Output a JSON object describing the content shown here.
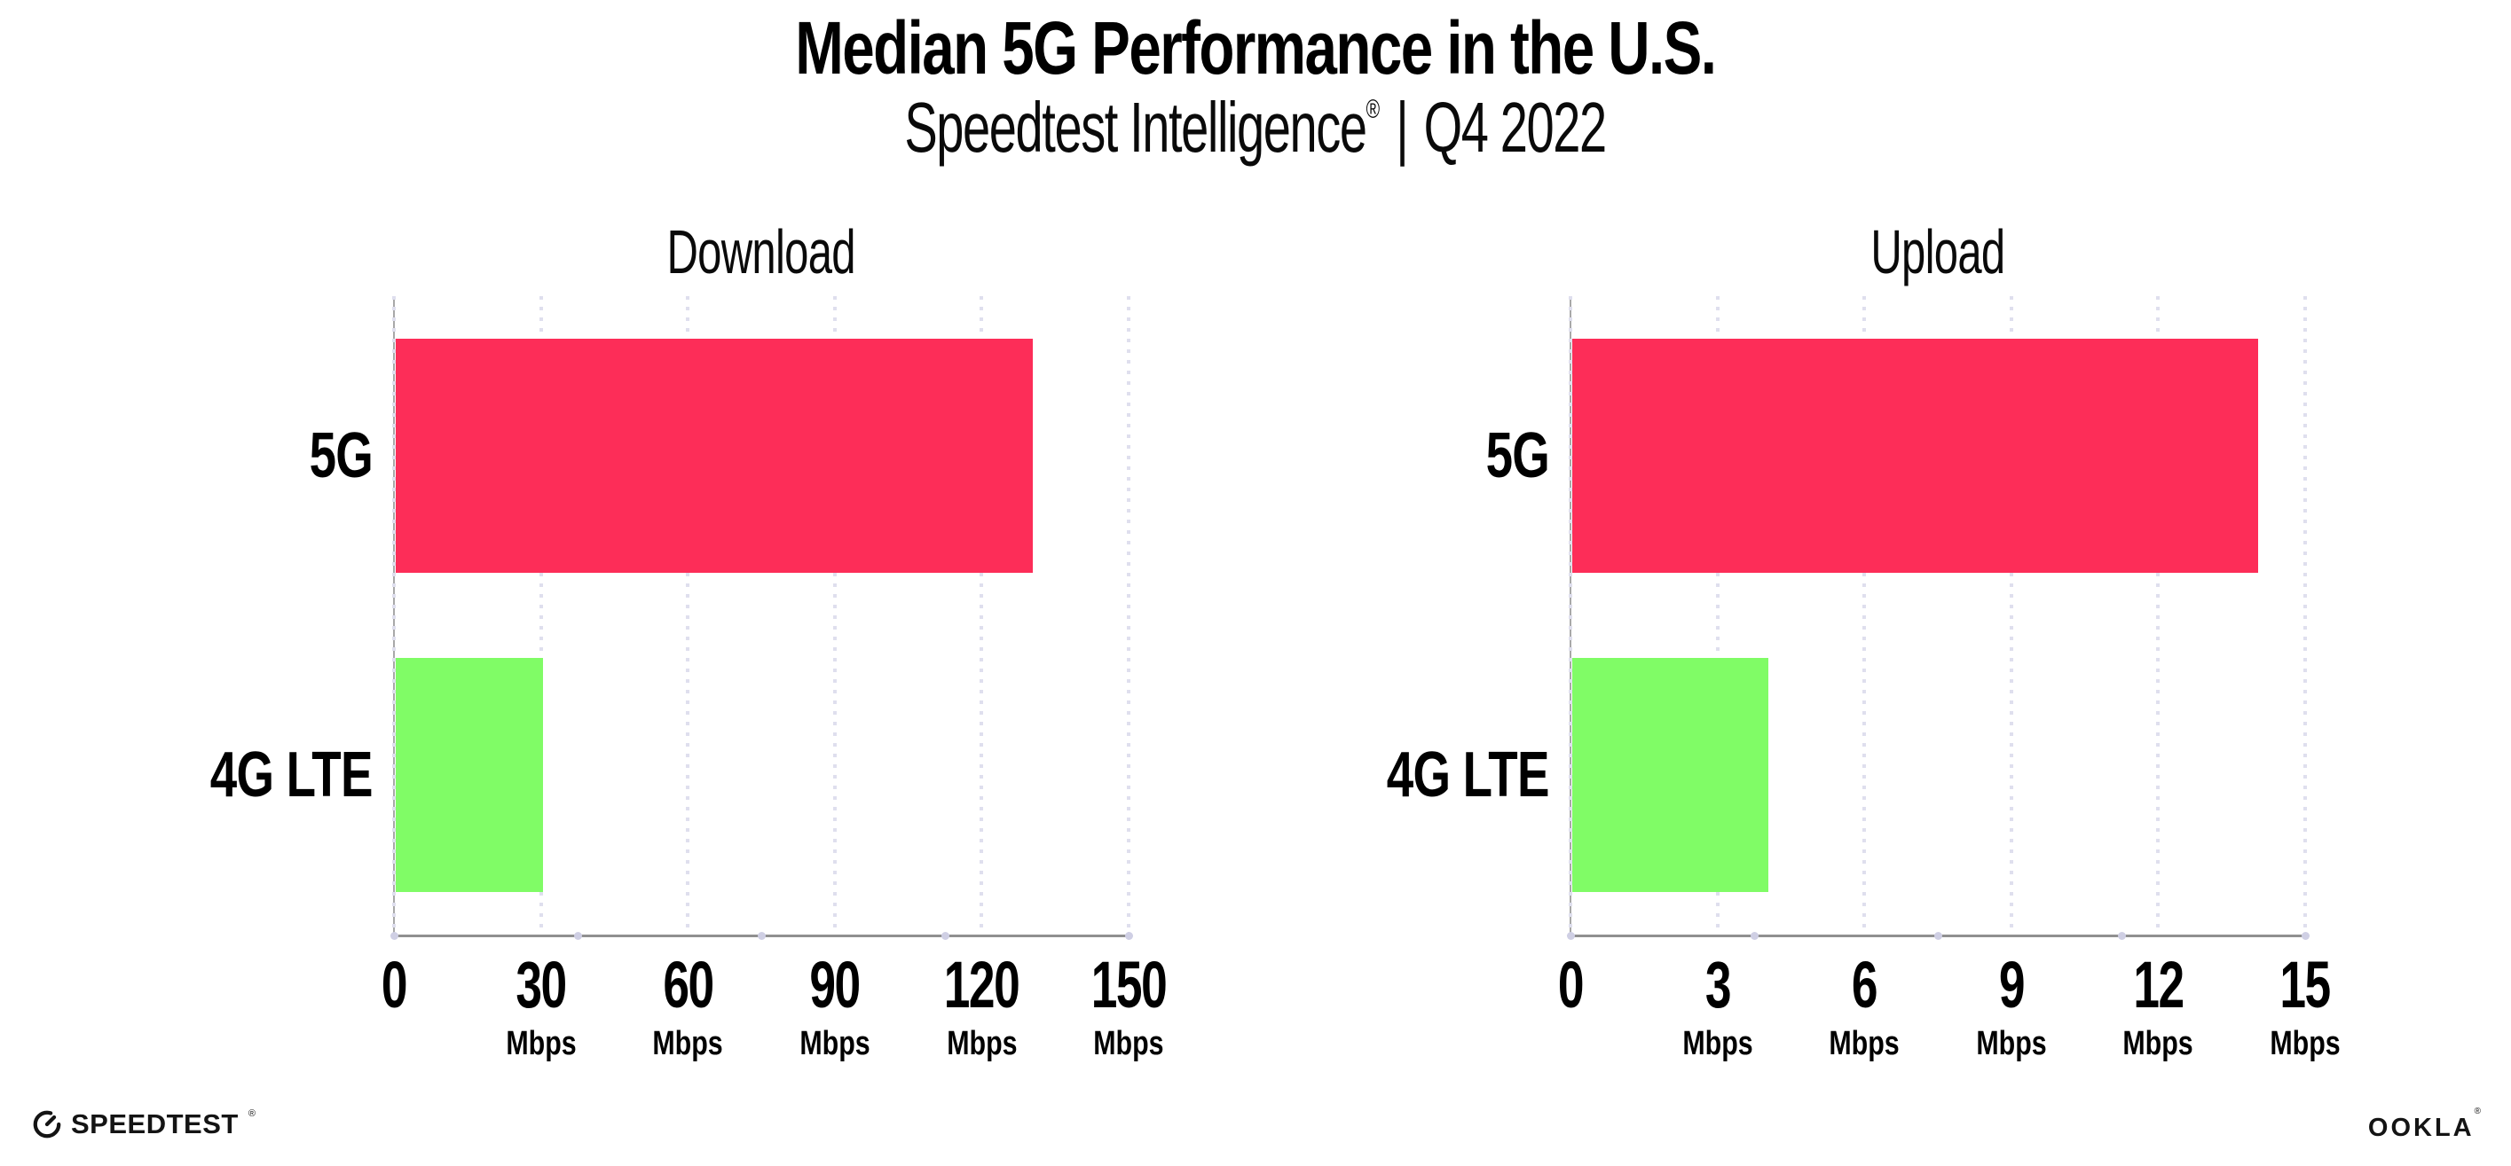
{
  "header": {
    "title": "Median 5G Performance in the U.S.",
    "subtitle": {
      "product": "Speedtest Intelligence",
      "reg_mark": "®",
      "separator": "|",
      "period": "Q4 2022"
    }
  },
  "chart_data": [
    {
      "type": "bar",
      "orientation": "horizontal",
      "title": "Download",
      "categories": [
        "5G",
        "4G LTE"
      ],
      "values": [
        130,
        30
      ],
      "unit": "Mbps",
      "xlim": [
        0,
        150
      ],
      "xticks": [
        0,
        30,
        60,
        90,
        120,
        150
      ],
      "bar_colors": [
        "#FD2D58",
        "#80FC66"
      ],
      "grid": "dotted-vertical",
      "legend": "none"
    },
    {
      "type": "bar",
      "orientation": "horizontal",
      "title": "Upload",
      "categories": [
        "5G",
        "4G LTE"
      ],
      "values": [
        14,
        4
      ],
      "unit": "Mbps",
      "xlim": [
        0,
        15
      ],
      "xticks": [
        0,
        3,
        6,
        9,
        12,
        15
      ],
      "bar_colors": [
        "#FD2D58",
        "#80FC66"
      ],
      "grid": "dotted-vertical",
      "legend": "none"
    }
  ],
  "footer": {
    "speedtest": {
      "label": "SPEEDTEST",
      "mark": "®"
    },
    "ookla": {
      "label": "OOKLA",
      "mark": "®"
    }
  },
  "colors": {
    "bar_5g": "#FD2D58",
    "bar_4g_lte": "#80FC66",
    "axis": "#909090",
    "grid_dot": "#dfdfee",
    "axis_marker_dot": "#cfcfe4",
    "text": "#000000"
  }
}
